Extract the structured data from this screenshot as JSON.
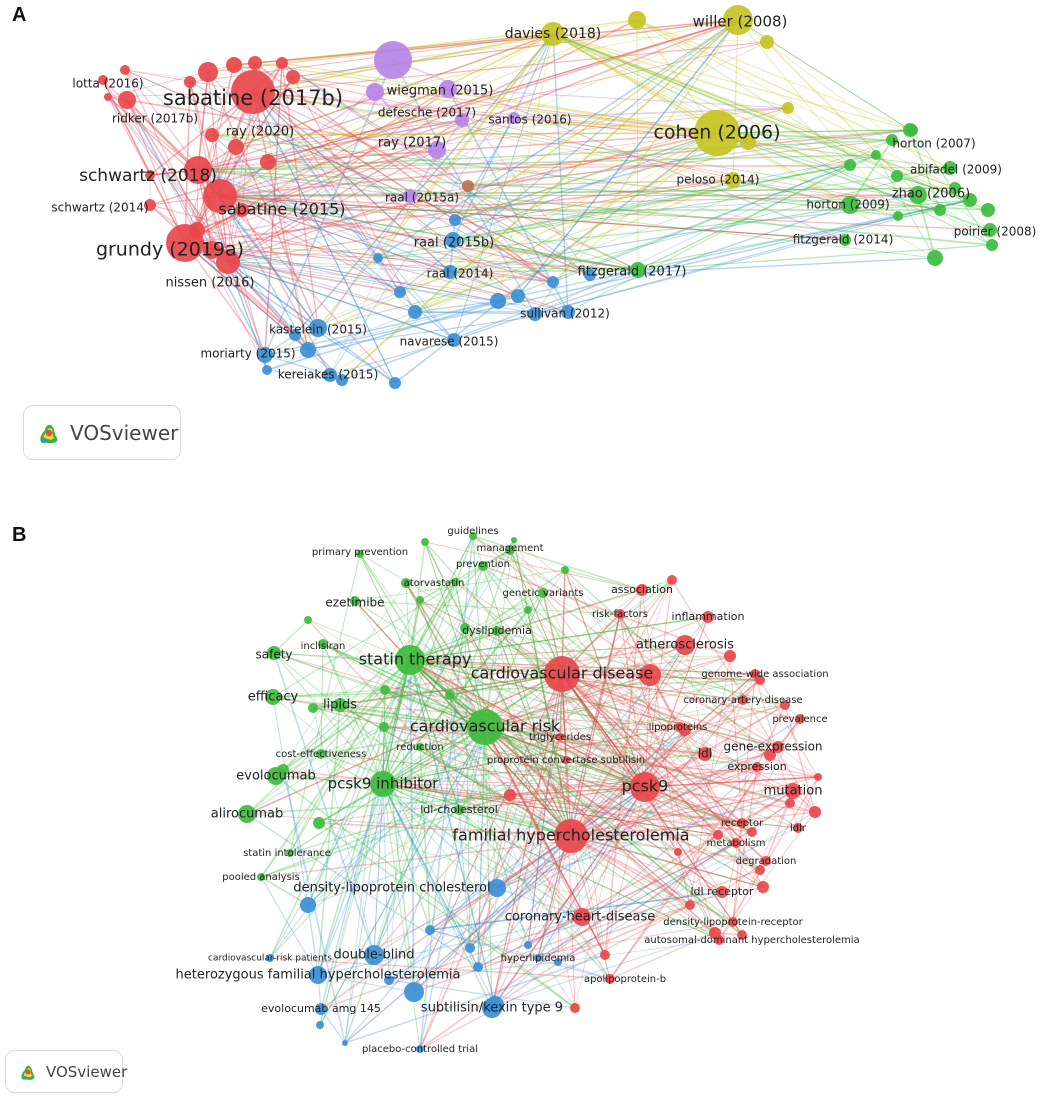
{
  "panels": {
    "a": {
      "letter": "A",
      "brand": "VOSviewer"
    },
    "b": {
      "letter": "B",
      "brand": "VOSviewer"
    }
  },
  "colors": {
    "red": "#e8474b",
    "green": "#3dbc3d",
    "blue": "#3b8fd6",
    "yellow": "#c5c423",
    "purple": "#b684e6",
    "brown": "#b8734d"
  },
  "chart_data": [
    {
      "type": "network",
      "nodes": [
        {
          "label": "sabatine (2017b)",
          "cluster": "red",
          "weight": 5
        },
        {
          "label": "schwartz (2018)",
          "cluster": "red",
          "weight": 4
        },
        {
          "label": "sabatine (2015)",
          "cluster": "red",
          "weight": 4
        },
        {
          "label": "grundy (2019a)",
          "cluster": "red",
          "weight": 5
        },
        {
          "label": "lotta (2016)",
          "cluster": "red",
          "weight": 2
        },
        {
          "label": "ridker (2017b)",
          "cluster": "red",
          "weight": 2
        },
        {
          "label": "ray (2020)",
          "cluster": "red",
          "weight": 2
        },
        {
          "label": "schwartz (2014)",
          "cluster": "red",
          "weight": 2
        },
        {
          "label": "nissen (2016)",
          "cluster": "red",
          "weight": 2
        },
        {
          "label": "davies (2018)",
          "cluster": "yellow",
          "weight": 3
        },
        {
          "label": "willer (2008)",
          "cluster": "yellow",
          "weight": 4
        },
        {
          "label": "cohen (2006)",
          "cluster": "yellow",
          "weight": 5
        },
        {
          "label": "peloso (2014)",
          "cluster": "yellow",
          "weight": 2
        },
        {
          "label": "wiegman (2015)",
          "cluster": "purple",
          "weight": 2
        },
        {
          "label": "defesche (2017)",
          "cluster": "purple",
          "weight": 2
        },
        {
          "label": "santos (2016)",
          "cluster": "purple",
          "weight": 2
        },
        {
          "label": "ray (2017)",
          "cluster": "purple",
          "weight": 2
        },
        {
          "label": "raal (2015a)",
          "cluster": "purple",
          "weight": 2
        },
        {
          "label": "horton (2007)",
          "cluster": "green",
          "weight": 2
        },
        {
          "label": "abifadel (2009)",
          "cluster": "green",
          "weight": 2
        },
        {
          "label": "zhao (2006)",
          "cluster": "green",
          "weight": 2
        },
        {
          "label": "horton (2009)",
          "cluster": "green",
          "weight": 2
        },
        {
          "label": "poirier (2008)",
          "cluster": "green",
          "weight": 2
        },
        {
          "label": "fitzgerald (2014)",
          "cluster": "green",
          "weight": 2
        },
        {
          "label": "fitzgerald (2017)",
          "cluster": "green",
          "weight": 2
        },
        {
          "label": "raal (2015b)",
          "cluster": "blue",
          "weight": 2
        },
        {
          "label": "raal (2014)",
          "cluster": "blue",
          "weight": 2
        },
        {
          "label": "sullivan (2012)",
          "cluster": "blue",
          "weight": 2
        },
        {
          "label": "kastelein (2015)",
          "cluster": "blue",
          "weight": 2
        },
        {
          "label": "navarese (2015)",
          "cluster": "blue",
          "weight": 2
        },
        {
          "label": "moriarty (2015)",
          "cluster": "blue",
          "weight": 2
        },
        {
          "label": "kereiakes (2015)",
          "cluster": "blue",
          "weight": 2
        }
      ]
    },
    {
      "type": "network",
      "nodes": [
        {
          "label": "guidelines",
          "cluster": "green",
          "weight": 1
        },
        {
          "label": "management",
          "cluster": "green",
          "weight": 1
        },
        {
          "label": "primary prevention",
          "cluster": "green",
          "weight": 1
        },
        {
          "label": "prevention",
          "cluster": "green",
          "weight": 1
        },
        {
          "label": "atorvastatin",
          "cluster": "green",
          "weight": 1
        },
        {
          "label": "genetic variants",
          "cluster": "green",
          "weight": 1
        },
        {
          "label": "ezetimibe",
          "cluster": "green",
          "weight": 2
        },
        {
          "label": "dyslipidemia",
          "cluster": "green",
          "weight": 1
        },
        {
          "label": "inclisiran",
          "cluster": "green",
          "weight": 1
        },
        {
          "label": "safety",
          "cluster": "green",
          "weight": 2
        },
        {
          "label": "statin therapy",
          "cluster": "green",
          "weight": 4
        },
        {
          "label": "efficacy",
          "cluster": "green",
          "weight": 3
        },
        {
          "label": "lipids",
          "cluster": "green",
          "weight": 2
        },
        {
          "label": "cardiovascular risk",
          "cluster": "green",
          "weight": 5
        },
        {
          "label": "cost-effectiveness",
          "cluster": "green",
          "weight": 1
        },
        {
          "label": "reduction",
          "cluster": "green",
          "weight": 1
        },
        {
          "label": "evolocumab",
          "cluster": "green",
          "weight": 3
        },
        {
          "label": "pcsk9 inhibitor",
          "cluster": "green",
          "weight": 4
        },
        {
          "label": "alirocumab",
          "cluster": "green",
          "weight": 3
        },
        {
          "label": "statin intolerance",
          "cluster": "green",
          "weight": 1
        },
        {
          "label": "pooled analysis",
          "cluster": "green",
          "weight": 1
        },
        {
          "label": "association",
          "cluster": "red",
          "weight": 1
        },
        {
          "label": "risk-factors",
          "cluster": "red",
          "weight": 1
        },
        {
          "label": "inflammation",
          "cluster": "red",
          "weight": 1
        },
        {
          "label": "atherosclerosis",
          "cluster": "red",
          "weight": 3
        },
        {
          "label": "cardiovascular disease",
          "cluster": "red",
          "weight": 5
        },
        {
          "label": "genome-wide association",
          "cluster": "red",
          "weight": 1
        },
        {
          "label": "coronary-artery-disease",
          "cluster": "red",
          "weight": 1
        },
        {
          "label": "prevalence",
          "cluster": "red",
          "weight": 1
        },
        {
          "label": "triglycerides",
          "cluster": "red",
          "weight": 1
        },
        {
          "label": "lipoproteins",
          "cluster": "red",
          "weight": 1
        },
        {
          "label": "ldl",
          "cluster": "red",
          "weight": 2
        },
        {
          "label": "gene-expression",
          "cluster": "red",
          "weight": 2
        },
        {
          "label": "proprotein convertase subtilisin",
          "cluster": "red",
          "weight": 1
        },
        {
          "label": "expression",
          "cluster": "red",
          "weight": 1
        },
        {
          "label": "pcsk9",
          "cluster": "red",
          "weight": 5
        },
        {
          "label": "mutation",
          "cluster": "red",
          "weight": 2
        },
        {
          "label": "ldl-cholesterol",
          "cluster": "green",
          "weight": 1
        },
        {
          "label": "receptor",
          "cluster": "red",
          "weight": 1
        },
        {
          "label": "ldlr",
          "cluster": "red",
          "weight": 1
        },
        {
          "label": "familial hypercholesterolemia",
          "cluster": "red",
          "weight": 5
        },
        {
          "label": "metabolism",
          "cluster": "red",
          "weight": 1
        },
        {
          "label": "degradation",
          "cluster": "red",
          "weight": 1
        },
        {
          "label": "density-lipoprotein cholesterol",
          "cluster": "blue",
          "weight": 3
        },
        {
          "label": "ldl receptor",
          "cluster": "red",
          "weight": 2
        },
        {
          "label": "coronary-heart-disease",
          "cluster": "red",
          "weight": 3
        },
        {
          "label": "density-lipoprotein-receptor",
          "cluster": "red",
          "weight": 1
        },
        {
          "label": "autosomal-dominant hypercholesterolemia",
          "cluster": "red",
          "weight": 1
        },
        {
          "label": "cardiovascular-risk patients",
          "cluster": "blue",
          "weight": 1
        },
        {
          "label": "double-blind",
          "cluster": "blue",
          "weight": 3
        },
        {
          "label": "hyperlipidemia",
          "cluster": "blue",
          "weight": 1
        },
        {
          "label": "heterozygous familial hypercholesterolemia",
          "cluster": "blue",
          "weight": 3
        },
        {
          "label": "apolipoprotein-b",
          "cluster": "red",
          "weight": 1
        },
        {
          "label": "evolocumab amg 145",
          "cluster": "blue",
          "weight": 2
        },
        {
          "label": "subtilisin/kexin type 9",
          "cluster": "blue",
          "weight": 3
        },
        {
          "label": "placebo-controlled trial",
          "cluster": "blue",
          "weight": 1
        }
      ]
    }
  ]
}
